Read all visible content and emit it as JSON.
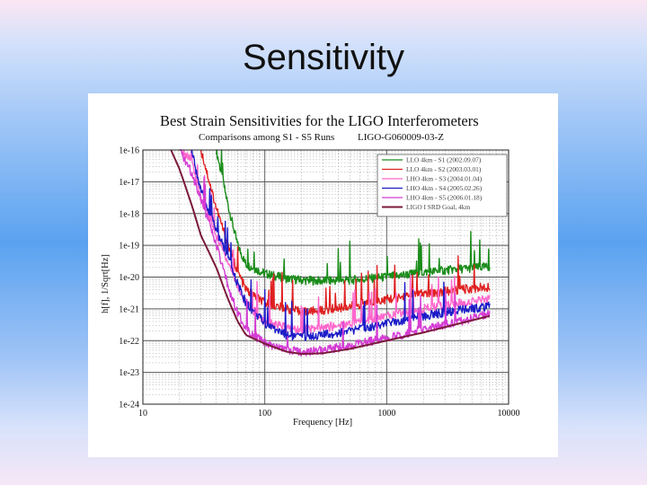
{
  "slide": {
    "title": "Sensitivity"
  },
  "colors": {
    "background_top": "#fbe6f3",
    "background_mid": "#5aa2f0",
    "figure_background": "#ffffff"
  },
  "chart_data": {
    "type": "line",
    "title": "Best Strain Sensitivities for the LIGO Interferometers",
    "subtitle_left": "Comparisons among S1 - S5 Runs",
    "subtitle_right": "LIGO-G060009-03-Z",
    "xlabel": "Frequency [Hz]",
    "ylabel": "h[f], 1/Sqrt[Hz]",
    "x_scale": "log",
    "y_scale": "log",
    "xlim": [
      10,
      10000
    ],
    "ylim": [
      1e-24,
      1e-16
    ],
    "x_ticks": [
      10,
      100,
      1000,
      10000
    ],
    "x_tick_labels": [
      "10",
      "100",
      "1000",
      "10000"
    ],
    "y_ticks": [
      1e-16,
      1e-17,
      1e-18,
      1e-19,
      1e-20,
      1e-21,
      1e-22,
      1e-23,
      1e-24
    ],
    "y_tick_labels": [
      "1e-16",
      "1e-17",
      "1e-18",
      "1e-19",
      "1e-20",
      "1e-21",
      "1e-22",
      "1e-23",
      "1e-24"
    ],
    "grid": true,
    "legend_position": "top-right",
    "series": [
      {
        "name": "LLO 4km - S1 (2002.09.07)",
        "color": "#1a8c1a",
        "x": [
          40,
          50,
          60,
          70,
          100,
          150,
          200,
          300,
          500,
          1000,
          2000,
          4000,
          7000
        ],
        "y": [
          1e-16,
          1.8e-18,
          1e-19,
          2.5e-20,
          1.3e-20,
          9e-21,
          8e-21,
          7.5e-21,
          8e-21,
          1e-20,
          1.4e-20,
          1.8e-20,
          2.1e-20
        ]
      },
      {
        "name": "LLO 4km - S2 (2003.03.01)",
        "color": "#e02020",
        "x": [
          30,
          40,
          50,
          60,
          70,
          100,
          150,
          200,
          300,
          500,
          1000,
          2000,
          4000,
          7000
        ],
        "y": [
          1e-16,
          1.5e-18,
          1e-19,
          1.5e-20,
          4e-21,
          1.5e-21,
          1e-21,
          8e-22,
          9e-22,
          1.2e-21,
          2e-21,
          3e-21,
          4e-21,
          5e-21
        ]
      },
      {
        "name": "LHO 4km - S3 (2004.01.04)",
        "color": "#ff66cc",
        "x": [
          20,
          25,
          30,
          40,
          50,
          60,
          70,
          100,
          150,
          200,
          300,
          500,
          1000,
          2000,
          4000,
          7000
        ],
        "y": [
          1e-16,
          5e-17,
          3e-18,
          2e-19,
          3e-20,
          5e-21,
          1.5e-21,
          4e-22,
          2.5e-22,
          2.2e-22,
          2.5e-22,
          3.5e-22,
          6e-22,
          1e-21,
          1.5e-21,
          2e-21
        ]
      },
      {
        "name": "LHO 4km - S4 (2005.02.26)",
        "color": "#1c1cc8",
        "x": [
          25,
          30,
          40,
          50,
          60,
          70,
          100,
          150,
          200,
          300,
          500,
          1000,
          2000,
          4000,
          7000
        ],
        "y": [
          1e-16,
          5e-18,
          3e-19,
          4e-20,
          6e-21,
          1.5e-21,
          3.5e-22,
          1.5e-22,
          1.3e-22,
          1.5e-22,
          2e-22,
          3.5e-22,
          6e-22,
          9e-22,
          1.2e-21
        ]
      },
      {
        "name": "LHO 4km - S5 (2006.01.18)",
        "color": "#d43cd4",
        "x": [
          20,
          25,
          30,
          40,
          50,
          60,
          70,
          100,
          150,
          200,
          300,
          500,
          1000,
          2000,
          4000,
          7000
        ],
        "y": [
          1e-16,
          2e-17,
          3e-18,
          1e-19,
          5e-21,
          7e-22,
          2.5e-22,
          8e-23,
          5e-23,
          4.5e-23,
          5e-23,
          7e-23,
          1.2e-22,
          2.2e-22,
          4e-22,
          7e-22
        ]
      },
      {
        "name": "LIGO I SRD Goal, 4km",
        "color": "#7a1a3a",
        "x": [
          17,
          20,
          25,
          30,
          40,
          50,
          60,
          70,
          100,
          150,
          200,
          300,
          500,
          1000,
          2000,
          4000,
          7000
        ],
        "y": [
          1e-16,
          2.5e-17,
          2e-18,
          2e-19,
          2e-20,
          2e-21,
          4e-22,
          1.5e-22,
          8e-23,
          4.5e-23,
          3.8e-23,
          4e-23,
          5.5e-23,
          1e-22,
          1.8e-22,
          3.5e-22,
          6e-22
        ]
      }
    ]
  }
}
